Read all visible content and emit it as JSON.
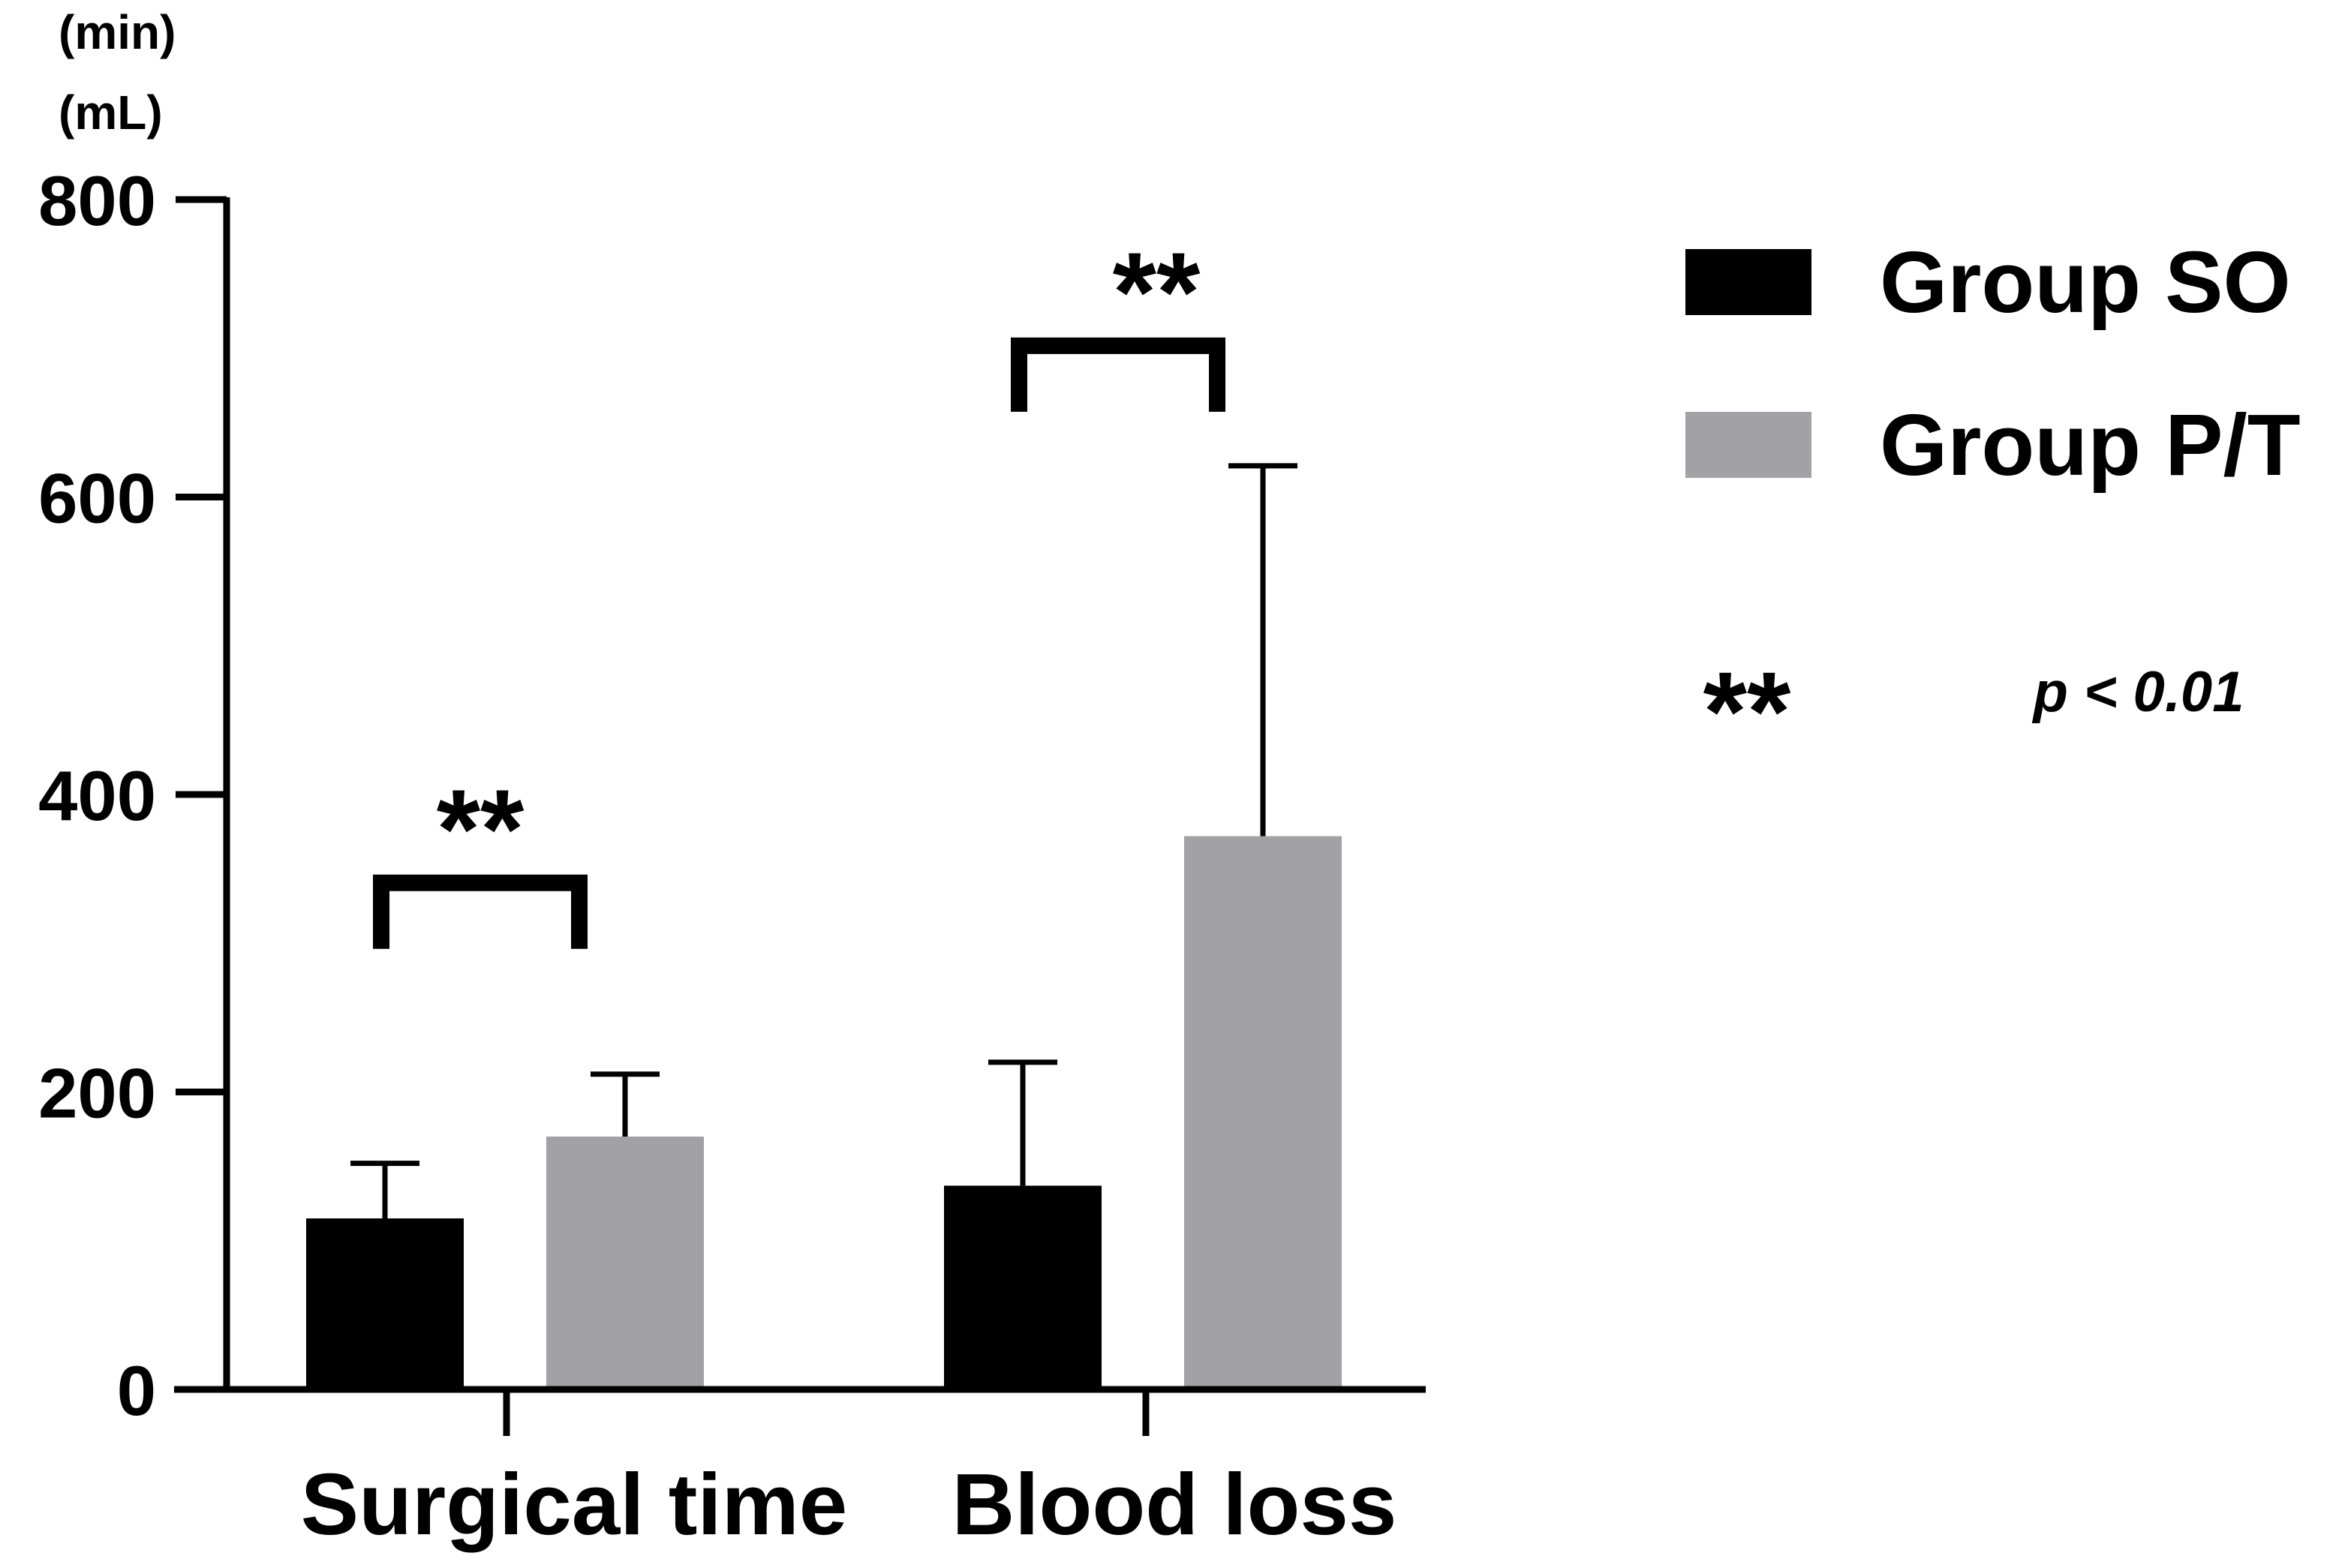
{
  "chart_data": {
    "type": "bar",
    "title": "",
    "xlabel": "",
    "ylabel_lines": [
      "(min)",
      "(mL)"
    ],
    "ylim": [
      0,
      800
    ],
    "yticks": [
      0,
      200,
      400,
      600,
      800
    ],
    "ytick_labels": [
      "0",
      "200",
      "400",
      "600",
      "800"
    ],
    "categories": [
      "Surgical time",
      "Blood loss"
    ],
    "series": [
      {
        "name": "Group SO",
        "color": "#000000",
        "values": [
          115,
          137
        ],
        "error_upper": [
          152,
          220
        ]
      },
      {
        "name": "Group P/T",
        "color": "#a2a2a6",
        "values": [
          170,
          372
        ],
        "error_upper": [
          212,
          621
        ]
      }
    ],
    "significance": [
      {
        "category_index": 0,
        "label": "**"
      },
      {
        "category_index": 1,
        "label": "**"
      }
    ],
    "significance_legend": {
      "symbol": "**",
      "text": "p < 0.01"
    },
    "legend_position": "right"
  }
}
